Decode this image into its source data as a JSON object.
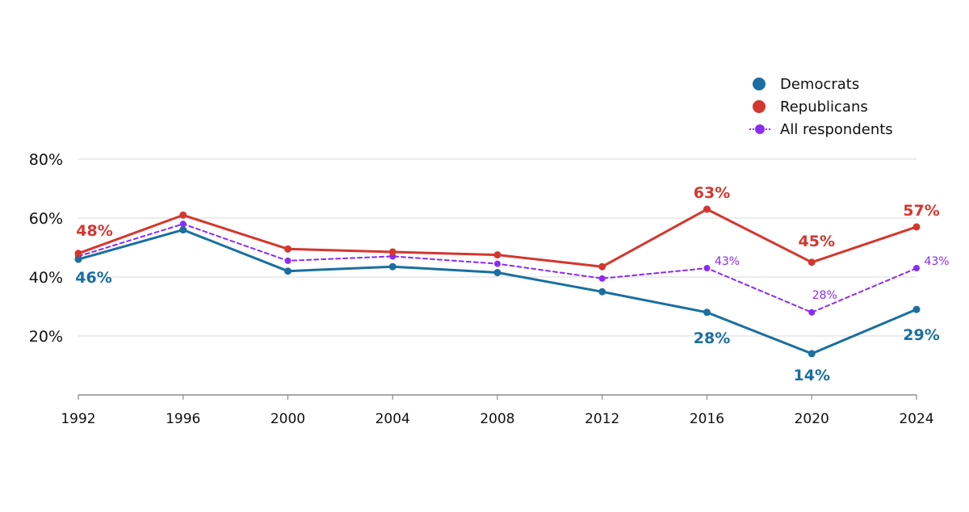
{
  "chart_data": {
    "type": "line",
    "x": [
      "1992",
      "1996",
      "2000",
      "2004",
      "2008",
      "2012",
      "2016",
      "2020",
      "2024"
    ],
    "ylim": [
      0,
      80
    ],
    "yticks": [
      "20%",
      "40%",
      "60%",
      "80%"
    ],
    "grid": true,
    "legend_position": "top-right",
    "series": [
      {
        "name": "Democrats",
        "color": "#1a6fa0",
        "style": "solid",
        "values": [
          46,
          56,
          42,
          43.5,
          41.5,
          35,
          28,
          14,
          29
        ],
        "labels": [
          {
            "index": 0,
            "text": "46%"
          },
          {
            "index": 6,
            "text": "28%"
          },
          {
            "index": 7,
            "text": "14%"
          },
          {
            "index": 8,
            "text": "29%"
          }
        ]
      },
      {
        "name": "Republicans",
        "color": "#d4372f",
        "style": "solid",
        "values": [
          48,
          61,
          49.5,
          48.5,
          47.5,
          43.5,
          63,
          45,
          57
        ],
        "labels": [
          {
            "index": 0,
            "text": "48%"
          },
          {
            "index": 6,
            "text": "63%"
          },
          {
            "index": 7,
            "text": "45%"
          },
          {
            "index": 8,
            "text": "57%"
          }
        ]
      },
      {
        "name": "All respondents",
        "color": "#8b2bf5",
        "style": "dashed",
        "values": [
          47,
          58,
          45.5,
          47,
          44.5,
          39.5,
          43,
          28,
          43
        ],
        "labels": [
          {
            "index": 6,
            "text": "43%"
          },
          {
            "index": 7,
            "text": "28%"
          },
          {
            "index": 8,
            "text": "43%"
          }
        ]
      }
    ]
  }
}
